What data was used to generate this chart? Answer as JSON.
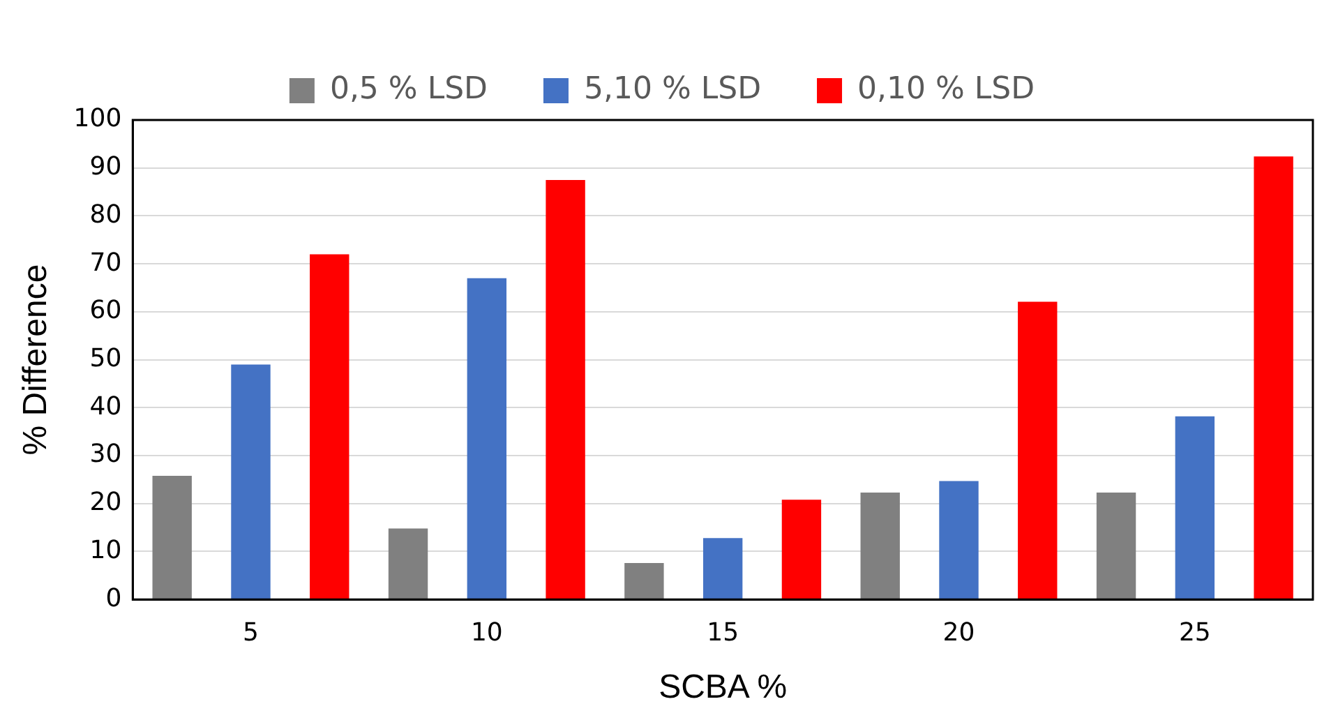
{
  "chart_data": {
    "type": "bar",
    "xlabel": "SCBA %",
    "ylabel": "% Difference",
    "categories": [
      "5",
      "10",
      "15",
      "20",
      "25"
    ],
    "series": [
      {
        "name": "0,5 % LSD",
        "color": "#808080",
        "values": [
          25.8,
          14.8,
          7.6,
          22.3,
          22.3
        ]
      },
      {
        "name": "5,10 % LSD",
        "color": "#4472c4",
        "values": [
          49,
          67,
          12.8,
          24.7,
          38.2
        ]
      },
      {
        "name": "0,10 % LSD",
        "color": "#ff0000",
        "values": [
          72,
          87.5,
          20.8,
          62.1,
          92.4
        ]
      }
    ],
    "ylim": [
      0,
      100
    ],
    "yticks": [
      0,
      10,
      20,
      30,
      40,
      50,
      60,
      70,
      80,
      90,
      100
    ],
    "grid": "y",
    "legend": "top"
  }
}
